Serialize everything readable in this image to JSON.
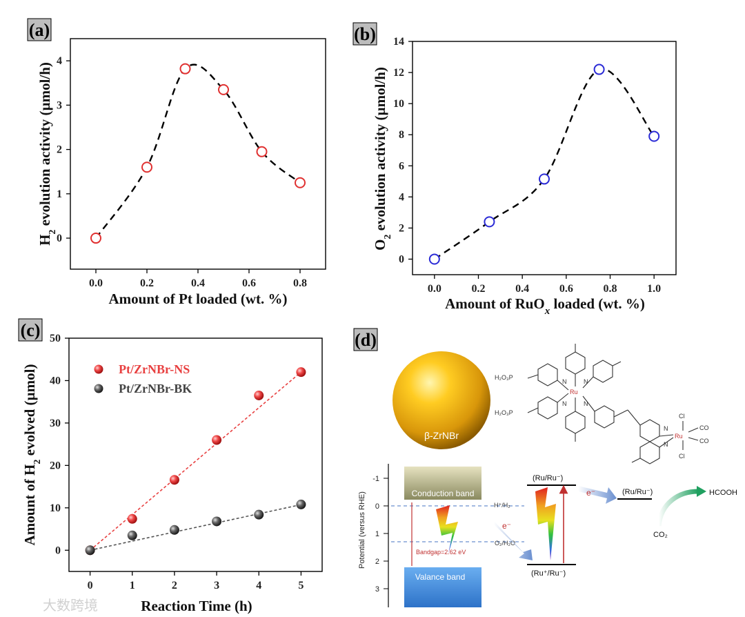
{
  "chart_data": [
    {
      "panel": "(a)",
      "type": "scatter",
      "xlabel": "Amount of Pt loaded (wt. %)",
      "ylabel_main": "H",
      "ylabel_sub": "2",
      "ylabel_rest": " evolution activity (µmol/h)",
      "xlim": [
        -0.1,
        0.9
      ],
      "ylim": [
        -0.7,
        4.5
      ],
      "xticks": [
        "0.0",
        "0.2",
        "0.4",
        "0.6",
        "0.8"
      ],
      "xtick_values": [
        0.0,
        0.2,
        0.4,
        0.6,
        0.8
      ],
      "yticks": [
        "0",
        "1",
        "2",
        "3",
        "4"
      ],
      "ytick_values": [
        0,
        1,
        2,
        3,
        4
      ],
      "x": [
        0.0,
        0.2,
        0.35,
        0.5,
        0.65,
        0.8
      ],
      "y": [
        0.0,
        1.6,
        3.82,
        3.35,
        1.95,
        1.25
      ],
      "marker_color": "#e03030"
    },
    {
      "panel": "(b)",
      "type": "scatter",
      "xlabel_main": "Amount of RuO",
      "xlabel_sub": "x",
      "xlabel_rest": " loaded (wt. %)",
      "ylabel_main": "O",
      "ylabel_sub": "2",
      "ylabel_rest": " evolution activity (µmol/h)",
      "xlim": [
        -0.1,
        1.1
      ],
      "ylim": [
        -1,
        14
      ],
      "xticks": [
        "0.0",
        "0.2",
        "0.4",
        "0.6",
        "0.8",
        "1.0"
      ],
      "xtick_values": [
        0.0,
        0.2,
        0.4,
        0.6,
        0.8,
        1.0
      ],
      "yticks": [
        "0",
        "2",
        "4",
        "6",
        "8",
        "10",
        "12",
        "14"
      ],
      "ytick_values": [
        0,
        2,
        4,
        6,
        8,
        10,
        12,
        14
      ],
      "x": [
        0.0,
        0.25,
        0.5,
        0.75,
        1.0
      ],
      "y": [
        0.0,
        2.4,
        5.15,
        12.2,
        7.9
      ],
      "marker_color": "#2b2bd6"
    },
    {
      "panel": "(c)",
      "type": "scatter",
      "xlabel": "Reaction Time (h)",
      "ylabel_main": "Amount of H",
      "ylabel_sub": "2",
      "ylabel_rest": " evolved (µmol)",
      "xlim": [
        -0.5,
        5.5
      ],
      "ylim": [
        -5,
        50
      ],
      "xticks": [
        "0",
        "1",
        "2",
        "3",
        "4",
        "5"
      ],
      "xtick_values": [
        0,
        1,
        2,
        3,
        4,
        5
      ],
      "yticks": [
        "0",
        "10",
        "20",
        "30",
        "40",
        "50"
      ],
      "ytick_values": [
        0,
        10,
        20,
        30,
        40,
        50
      ],
      "series": [
        {
          "name": "Pt/ZrNBr-NS",
          "color": "#e84040",
          "x": [
            0,
            1,
            2,
            3,
            4,
            5
          ],
          "y": [
            0,
            7.4,
            16.6,
            26.0,
            36.5,
            42.0
          ],
          "fit": [
            0,
            8.4
          ]
        },
        {
          "name": "Pt/ZrNBr-BK",
          "color": "#555555",
          "x": [
            0,
            1,
            2,
            3,
            4,
            5
          ],
          "y": [
            0,
            3.5,
            4.8,
            6.8,
            8.4,
            10.8
          ],
          "fit": [
            0,
            2.15
          ]
        }
      ]
    }
  ],
  "panel_d": {
    "label": "(d)",
    "sphere_label": "β-ZrNBr",
    "axis_label": "Potential (versus RHE)",
    "axis_ticks": [
      "-1",
      "0",
      "1",
      "2",
      "3"
    ],
    "conduction_band": "Conduction band",
    "valance_band": "Valance band",
    "bandgap": "Bandgap=2.62 eV",
    "h_level": "H⁺/H₂",
    "o_level": "O₂/H₂O",
    "electron": "e⁻",
    "ru_top": "(Ru/Ru⁻)",
    "ru_bottom": "(Ru⁺/Ru⁻)",
    "ru_right": "(Ru/Ru⁻)",
    "hcooh": "HCOOH",
    "co2": "CO₂",
    "mol": {
      "ru": "Ru",
      "n": "N",
      "cl": "Cl",
      "co": "CO",
      "phosph": "H₂O₃P"
    }
  },
  "watermark": "大数跨境"
}
